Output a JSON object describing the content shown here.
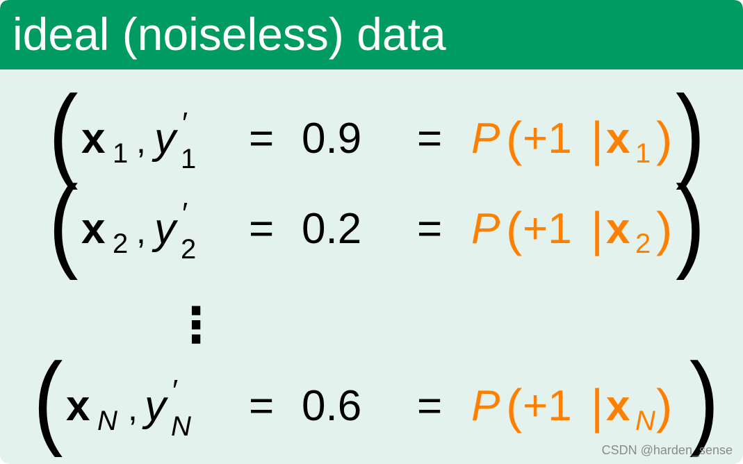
{
  "header": {
    "title": "ideal (noiseless) data"
  },
  "symbols": {
    "open": "(",
    "close": ")",
    "comma": ",",
    "eq": "=",
    "x": "x",
    "y": "y",
    "prime": "′",
    "P": "P",
    "plus_one": "+1",
    "bar": "|",
    "vdots": "⋮"
  },
  "rows": [
    {
      "index": "1",
      "value": 0.9
    },
    {
      "index": "2",
      "value": 0.2
    },
    {
      "index": "N",
      "value": 0.6
    }
  ],
  "watermark": "CSDN @harden_sense"
}
